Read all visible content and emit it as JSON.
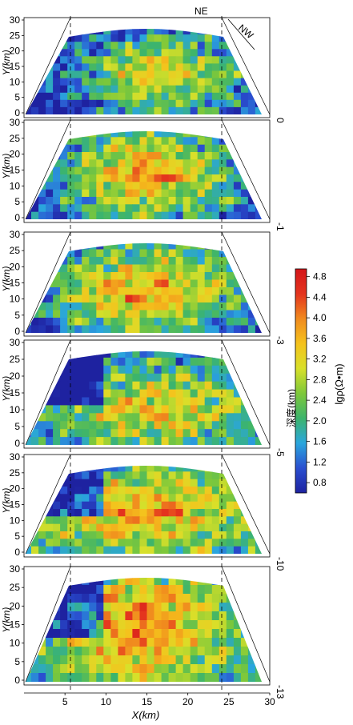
{
  "chart_data": {
    "type": "heatmap",
    "title": "",
    "xlabel": "X(km)",
    "ylabel": "Y(km)",
    "xlim": [
      0,
      30
    ],
    "ylim": [
      0,
      30
    ],
    "x_ticks": [
      "5",
      "10",
      "15",
      "20",
      "25",
      "30"
    ],
    "y_ticks": [
      "0",
      "5",
      "10",
      "15",
      "20",
      "25",
      "30"
    ],
    "direction_labels": [
      "NE",
      "NW"
    ],
    "depth_axis_label": "深度(km)",
    "depth_values": [
      "0",
      "-1",
      "-3",
      "-5",
      "-10",
      "-13"
    ],
    "colorbar": {
      "label": "lgρ(Ω•m)",
      "ticks": [
        "4.8",
        "4.4",
        "4.0",
        "3.6",
        "3.2",
        "2.8",
        "2.4",
        "2.0",
        "1.6",
        "1.2",
        "0.8"
      ],
      "range": [
        0.6,
        4.95
      ],
      "colors": [
        "#1e22a0",
        "#2a4fd0",
        "#2aa6dd",
        "#3cb46c",
        "#7ec83a",
        "#d8e02a",
        "#f5c21c",
        "#f08a1e",
        "#e4341e",
        "#d4161a"
      ]
    },
    "panels": [
      {
        "depth": "0",
        "high_zone_x": [
          10,
          24
        ],
        "high_zone_y": [
          4,
          23
        ],
        "level": 0.58
      },
      {
        "depth": "-1",
        "high_zone_x": [
          8,
          22
        ],
        "high_zone_y": [
          4,
          26
        ],
        "level": 0.7
      },
      {
        "depth": "-3",
        "high_zone_x": [
          7,
          23
        ],
        "high_zone_y": [
          2,
          26
        ],
        "level": 0.68
      },
      {
        "depth": "-5",
        "high_zone_x": [
          6,
          27
        ],
        "high_zone_y": [
          0,
          22
        ],
        "level": 0.6
      },
      {
        "depth": "-10",
        "high_zone_x": [
          2,
          28
        ],
        "high_zone_y": [
          0,
          28
        ],
        "level": 0.66
      },
      {
        "depth": "-13",
        "high_zone_x": [
          4,
          24
        ],
        "high_zone_y": [
          0,
          30
        ],
        "level": 0.74
      }
    ]
  }
}
